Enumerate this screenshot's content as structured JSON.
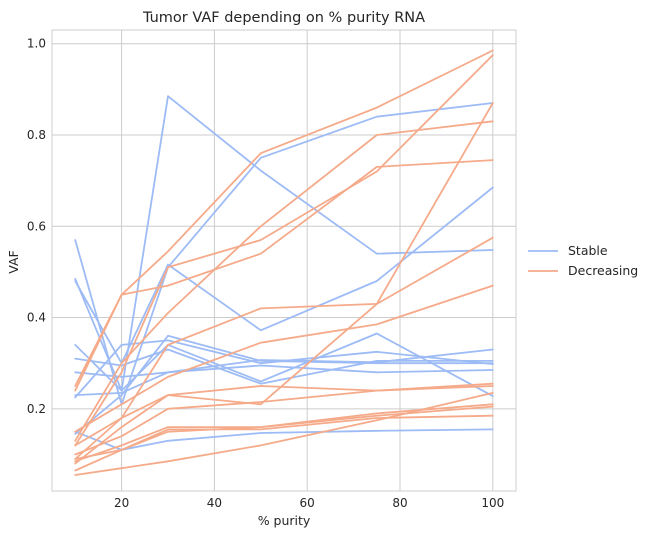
{
  "chart_data": {
    "type": "line",
    "title": "Tumor VAF depending on % purity RNA",
    "xlabel": "% purity",
    "ylabel": "VAF",
    "xlim": [
      5,
      105
    ],
    "ylim": [
      0.02,
      1.03
    ],
    "x_ticks": [
      20,
      40,
      60,
      80,
      100
    ],
    "y_ticks": [
      0.2,
      0.4,
      0.6,
      0.8,
      1.0
    ],
    "x_tick_labels": [
      "20",
      "40",
      "60",
      "80",
      "100"
    ],
    "y_tick_labels": [
      "0.2",
      "0.4",
      "0.6",
      "0.8",
      "1.0"
    ],
    "grid": true,
    "legend_position": "right-outside",
    "groups": [
      {
        "label": "Stable",
        "color": "#9dbbf5"
      },
      {
        "label": "Decreasing",
        "color": "#f5aa8a"
      }
    ],
    "x": [
      10,
      20,
      30,
      50,
      75,
      100
    ],
    "series": [
      {
        "group": "Stable",
        "values": [
          0.57,
          0.21,
          0.51,
          0.75,
          0.84,
          0.87
        ]
      },
      {
        "group": "Stable",
        "values": [
          0.485,
          0.24,
          0.885,
          0.722,
          0.54,
          0.548
        ]
      },
      {
        "group": "Stable",
        "values": [
          0.48,
          0.3,
          0.516,
          0.372,
          0.48,
          0.685
        ]
      },
      {
        "group": "Stable",
        "values": [
          0.34,
          0.24,
          0.34,
          0.26,
          0.365,
          0.228
        ]
      },
      {
        "group": "Stable",
        "values": [
          0.31,
          0.295,
          0.33,
          0.255,
          0.305,
          0.305
        ]
      },
      {
        "group": "Stable",
        "values": [
          0.28,
          0.27,
          0.28,
          0.295,
          0.28,
          0.285
        ]
      },
      {
        "group": "Stable",
        "values": [
          0.225,
          0.34,
          0.35,
          0.3,
          0.325,
          0.298
        ]
      },
      {
        "group": "Stable",
        "values": [
          0.23,
          0.235,
          0.28,
          0.307,
          0.302,
          0.33
        ]
      },
      {
        "group": "Stable",
        "values": [
          0.145,
          0.23,
          0.36,
          0.305,
          0.3,
          0.3
        ]
      },
      {
        "group": "Stable",
        "values": [
          0.15,
          0.11,
          0.13,
          0.147,
          0.152,
          0.155
        ]
      },
      {
        "group": "Decreasing",
        "values": [
          0.24,
          0.45,
          0.47,
          0.54,
          0.73,
          0.745
        ]
      },
      {
        "group": "Decreasing",
        "values": [
          0.25,
          0.45,
          0.545,
          0.76,
          0.86,
          0.985
        ]
      },
      {
        "group": "Decreasing",
        "values": [
          0.13,
          0.3,
          0.41,
          0.6,
          0.8,
          0.83
        ]
      },
      {
        "group": "Decreasing",
        "values": [
          0.12,
          0.28,
          0.51,
          0.57,
          0.72,
          0.975
        ]
      },
      {
        "group": "Decreasing",
        "values": [
          0.09,
          0.18,
          0.34,
          0.42,
          0.43,
          0.575
        ]
      },
      {
        "group": "Decreasing",
        "values": [
          0.08,
          0.16,
          0.23,
          0.21,
          0.43,
          0.87
        ]
      },
      {
        "group": "Decreasing",
        "values": [
          0.15,
          0.21,
          0.27,
          0.345,
          0.385,
          0.47
        ]
      },
      {
        "group": "Decreasing",
        "values": [
          0.12,
          0.18,
          0.23,
          0.25,
          0.24,
          0.25
        ]
      },
      {
        "group": "Decreasing",
        "values": [
          0.1,
          0.14,
          0.2,
          0.215,
          0.24,
          0.255
        ]
      },
      {
        "group": "Decreasing",
        "values": [
          0.085,
          0.12,
          0.16,
          0.16,
          0.19,
          0.21
        ]
      },
      {
        "group": "Decreasing",
        "values": [
          0.09,
          0.11,
          0.15,
          0.16,
          0.185,
          0.205
        ]
      },
      {
        "group": "Decreasing",
        "values": [
          0.065,
          0.11,
          0.155,
          0.155,
          0.18,
          0.185
        ]
      },
      {
        "group": "Decreasing",
        "values": [
          0.055,
          0.07,
          0.085,
          0.12,
          0.175,
          0.235
        ]
      }
    ]
  }
}
